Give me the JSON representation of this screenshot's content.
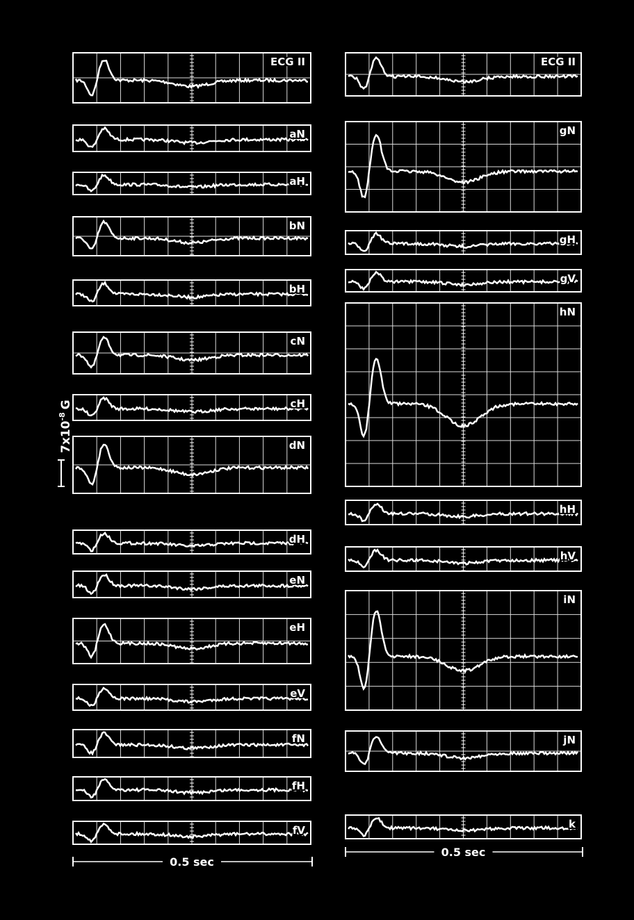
{
  "figure": {
    "left_column": {
      "panels": [
        {
          "label": "ECG II"
        },
        {
          "label": "aN"
        },
        {
          "label": "aH"
        },
        {
          "label": "bN"
        },
        {
          "label": "bH"
        },
        {
          "label": "cN"
        },
        {
          "label": "cH"
        },
        {
          "label": "dN"
        },
        {
          "label": "dH"
        },
        {
          "label": "eN"
        },
        {
          "label": "eH"
        },
        {
          "label": "eV"
        },
        {
          "label": "fN"
        },
        {
          "label": "fH"
        },
        {
          "label": "fV"
        }
      ],
      "time_scale": "0.5 sec"
    },
    "right_column": {
      "panels": [
        {
          "label": "ECG II"
        },
        {
          "label": "gN"
        },
        {
          "label": "gH"
        },
        {
          "label": "gV"
        },
        {
          "label": "hN"
        },
        {
          "label": "hH"
        },
        {
          "label": "hV"
        },
        {
          "label": "iN"
        },
        {
          "label": "jN"
        },
        {
          "label": "k"
        }
      ],
      "time_scale": "0.5 sec"
    },
    "amplitude_scale": {
      "base": "7x10",
      "exponent": "-8",
      "unit": "G"
    }
  }
}
